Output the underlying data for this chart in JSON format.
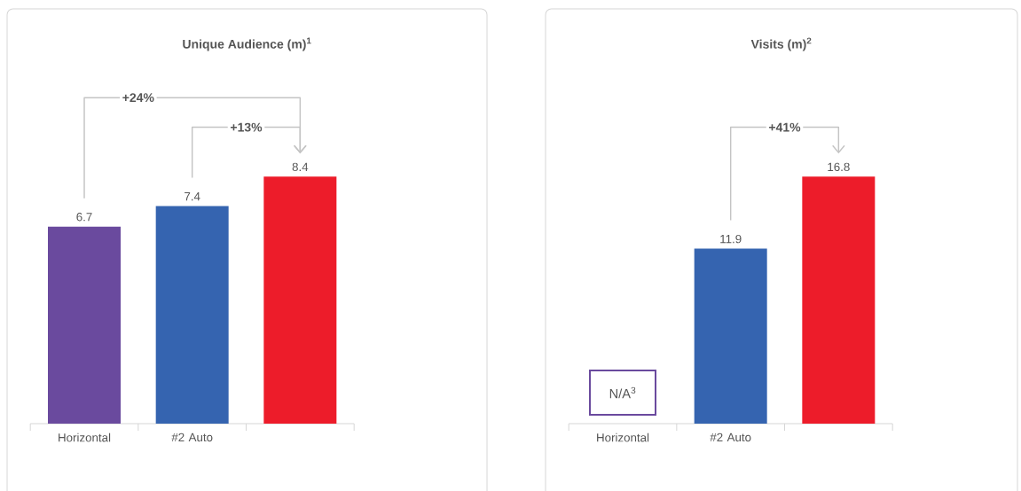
{
  "chart_data": [
    {
      "type": "bar",
      "title": "**Unique Audience (m)**$^{1}$",
      "categories": [
        "Horizontal",
        "#2 Auto",
        null
      ],
      "values": [
        6.7,
        7.4,
        8.4
      ],
      "colors": [
        "#6a4a9e",
        "#3564b0",
        "#ed1c2a"
      ],
      "data_labels": true,
      "annotations": [
        "+24%",
        "+13%"
      ]
    },
    {
      "type": "bar",
      "title": "**Visits (m)**$^{2}$",
      "categories": [
        "Horizontal",
        "#2 Auto",
        null
      ],
      "values": [
        null,
        11.9,
        16.8
      ],
      "colors": [
        "#6a4a9e",
        "#3564b0",
        "#ed1c2a"
      ],
      "data_labels": true,
      "annotations": [
        "N/A$^{3}$",
        "+41%"
      ]
    }
  ]
}
